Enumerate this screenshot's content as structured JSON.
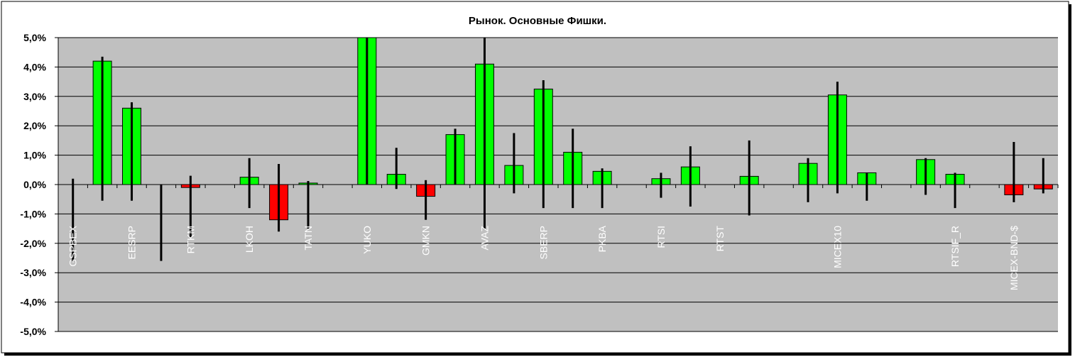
{
  "chart_data": {
    "type": "candlestick",
    "title": "Рынок. Основные Фишки.",
    "categories": [
      "GSPBEX",
      null,
      "EESRP",
      null,
      "RTKM",
      null,
      "LKOH",
      null,
      "TATN",
      null,
      "YUKO",
      null,
      "GMKN",
      null,
      "AVAZ",
      null,
      "SBERP",
      null,
      "PKBA",
      null,
      "RTSI",
      null,
      "RTST",
      null,
      null,
      null,
      "MICEX10",
      null,
      null,
      null,
      "RTSIF_R",
      null,
      "MICEX-BND-$",
      null
    ],
    "values": [
      0,
      4.2,
      2.6,
      null,
      -0.1,
      null,
      0.25,
      -1.2,
      0.05,
      null,
      5.0,
      0.35,
      -0.4,
      1.7,
      4.1,
      0.65,
      3.25,
      1.1,
      0.45,
      null,
      0.2,
      0.6,
      0,
      0.28,
      null,
      0.72,
      3.05,
      0.4,
      null,
      0.85,
      0.35,
      null,
      -0.35,
      -0.15
    ],
    "high": [
      0.2,
      4.35,
      2.8,
      0,
      0.3,
      null,
      0.9,
      0.7,
      0.12,
      null,
      5.0,
      1.25,
      0.15,
      1.9,
      5.0,
      1.75,
      3.55,
      1.9,
      0.55,
      null,
      0.4,
      1.3,
      0,
      1.5,
      null,
      0.9,
      3.5,
      0.4,
      null,
      0.9,
      0.4,
      null,
      1.45,
      0.9
    ],
    "low": [
      -2.6,
      -0.55,
      -0.55,
      -2.6,
      -1.8,
      null,
      -0.8,
      -1.6,
      -1.5,
      null,
      0,
      -0.15,
      -1.2,
      0,
      -1.5,
      -0.3,
      -0.8,
      -0.8,
      -0.8,
      null,
      -0.45,
      -0.75,
      0,
      -1.05,
      null,
      -0.6,
      -0.3,
      -0.55,
      null,
      -0.35,
      -0.8,
      null,
      -0.6,
      -0.3
    ],
    "up_color": "#00ff00",
    "down_color": "#ff0000",
    "plot_background": "#c0c0c0",
    "ylim": [
      -5,
      5
    ],
    "yticks": [
      {
        "value": -5,
        "label": "-5,0%"
      },
      {
        "value": -4,
        "label": "-4,0%"
      },
      {
        "value": -3,
        "label": "-3,0%"
      },
      {
        "value": -2,
        "label": "-2,0%"
      },
      {
        "value": -1,
        "label": "-1,0%"
      },
      {
        "value": 0,
        "label": "0,0%"
      },
      {
        "value": 1,
        "label": "1,0%"
      },
      {
        "value": 2,
        "label": "2,0%"
      },
      {
        "value": 3,
        "label": "3,0%"
      },
      {
        "value": 4,
        "label": "4,0%"
      },
      {
        "value": 5,
        "label": "5,0%"
      }
    ],
    "grid": true
  }
}
